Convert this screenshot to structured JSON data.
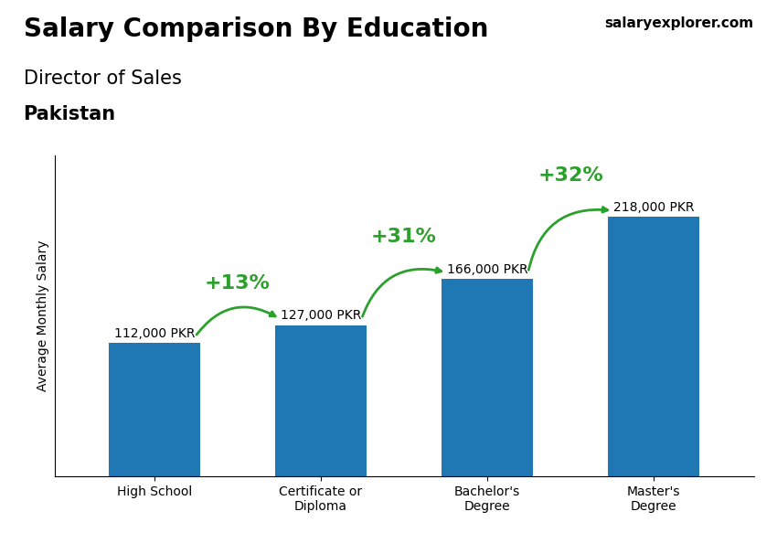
{
  "chart_data": {
    "type": "bar",
    "title": "Salary Comparison By Education",
    "subtitle": "Director of Sales",
    "country": "Pakistan",
    "source": "salaryexplorer.com",
    "ylabel": "Average Monthly Salary",
    "categories": [
      "High School",
      "Certificate or\nDiploma",
      "Bachelor's\nDegree",
      "Master's\nDegree"
    ],
    "values": [
      112000,
      127000,
      166000,
      218000
    ],
    "value_labels": [
      "112,000 PKR",
      "127,000 PKR",
      "166,000 PKR",
      "218,000 PKR"
    ],
    "data_labels": true,
    "annotations": [
      "+13%",
      "+31%",
      "+32%"
    ],
    "ylim": [
      0,
      270000
    ],
    "tick_labels": "x",
    "grid": false
  }
}
